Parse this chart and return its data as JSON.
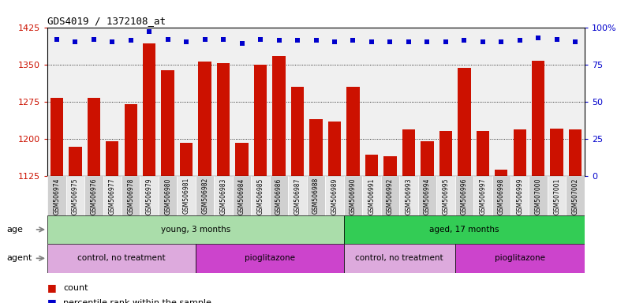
{
  "title": "GDS4019 / 1372108_at",
  "samples": [
    "GSM506974",
    "GSM506975",
    "GSM506976",
    "GSM506977",
    "GSM506978",
    "GSM506979",
    "GSM506980",
    "GSM506981",
    "GSM506982",
    "GSM506983",
    "GSM506984",
    "GSM506985",
    "GSM506986",
    "GSM506987",
    "GSM506988",
    "GSM506989",
    "GSM506990",
    "GSM506991",
    "GSM506992",
    "GSM506993",
    "GSM506994",
    "GSM506995",
    "GSM506996",
    "GSM506997",
    "GSM506998",
    "GSM506999",
    "GSM507000",
    "GSM507001",
    "GSM507002"
  ],
  "counts": [
    1283,
    1183,
    1283,
    1195,
    1270,
    1393,
    1338,
    1192,
    1355,
    1352,
    1192,
    1350,
    1367,
    1305,
    1240,
    1235,
    1305,
    1167,
    1165,
    1218,
    1195,
    1215,
    1343,
    1215,
    1138,
    1218,
    1358,
    1220,
    1218
  ],
  "percentiles": [
    92,
    90,
    92,
    90,
    91,
    97,
    92,
    90,
    92,
    92,
    89,
    92,
    91,
    91,
    91,
    90,
    91,
    90,
    90,
    90,
    90,
    90,
    91,
    90,
    90,
    91,
    93,
    92,
    90
  ],
  "ymin": 1125,
  "ymax": 1425,
  "yticks": [
    1125,
    1200,
    1275,
    1350,
    1425
  ],
  "right_yticks": [
    0,
    25,
    50,
    75,
    100
  ],
  "bar_color": "#cc1100",
  "dot_color": "#0000cc",
  "grid_lines": [
    1200,
    1275,
    1350
  ],
  "age_groups": [
    {
      "label": "young, 3 months",
      "start": 0,
      "end": 16,
      "color": "#aaddaa"
    },
    {
      "label": "aged, 17 months",
      "start": 16,
      "end": 29,
      "color": "#33cc55"
    }
  ],
  "agent_groups": [
    {
      "label": "control, no treatment",
      "start": 0,
      "end": 8,
      "color": "#ddaadd"
    },
    {
      "label": "pioglitazone",
      "start": 8,
      "end": 16,
      "color": "#cc44cc"
    },
    {
      "label": "control, no treatment",
      "start": 16,
      "end": 22,
      "color": "#ddaadd"
    },
    {
      "label": "pioglitazone",
      "start": 22,
      "end": 29,
      "color": "#cc44cc"
    }
  ],
  "tick_bg_even": "#d0d0d0",
  "tick_bg_odd": "#e8e8e8",
  "chart_bg": "#f0f0f0"
}
